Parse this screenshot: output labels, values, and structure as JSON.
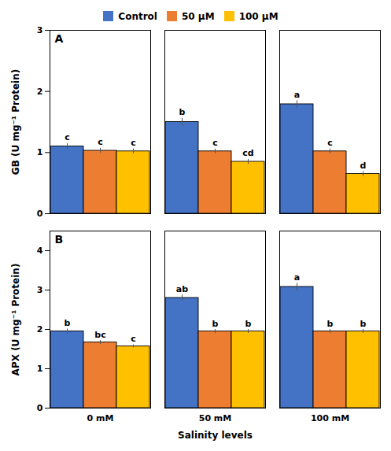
{
  "chart_data": [
    {
      "type": "bar",
      "title": "A",
      "categories": [
        "0 mM",
        "50 mM",
        "100 mM"
      ],
      "ylabel": "GB (U mg⁻¹ Protein)",
      "series": [
        {
          "name": "Control",
          "color": "#4472C4",
          "values": [
            1.1,
            1.5,
            1.79
          ],
          "errors": [
            0.05,
            0.06,
            0.06
          ],
          "annotations": [
            "c",
            "b",
            "a"
          ]
        },
        {
          "name": "50 μM",
          "color": "#ED7D31",
          "values": [
            1.03,
            1.02,
            1.02
          ],
          "errors": [
            0.04,
            0.04,
            0.04
          ],
          "annotations": [
            "c",
            "c",
            "c"
          ]
        },
        {
          "name": "100 μM",
          "color": "#FFC000",
          "values": [
            1.02,
            0.85,
            0.65
          ],
          "errors": [
            0.04,
            0.04,
            0.04
          ],
          "annotations": [
            "c",
            "cd",
            "d"
          ]
        }
      ],
      "ylim": [
        0,
        3
      ],
      "yticks": [
        0,
        1,
        2,
        3
      ],
      "grid": false,
      "legend": "top",
      "tick_labels": "y"
    },
    {
      "type": "bar",
      "title": "B",
      "categories": [
        "0 mM",
        "50 mM",
        "100 mM"
      ],
      "xlabel": "Salinity levels",
      "ylabel": "APX (U mg⁻¹ Protein)",
      "series": [
        {
          "name": "Control",
          "color": "#4472C4",
          "values": [
            1.95,
            2.8,
            3.08
          ],
          "errors": [
            0.06,
            0.08,
            0.09
          ],
          "annotations": [
            "b",
            "ab",
            "a"
          ]
        },
        {
          "name": "50 μM",
          "color": "#ED7D31",
          "values": [
            1.67,
            1.95,
            1.95
          ],
          "errors": [
            0.05,
            0.05,
            0.05
          ],
          "annotations": [
            "bc",
            "b",
            "b"
          ]
        },
        {
          "name": "100 μM",
          "color": "#FFC000",
          "values": [
            1.57,
            1.95,
            1.95
          ],
          "errors": [
            0.04,
            0.05,
            0.05
          ],
          "annotations": [
            "c",
            "b",
            "b"
          ]
        }
      ],
      "ylim": [
        0,
        4.5
      ],
      "yticks": [
        0,
        1,
        2,
        3,
        4
      ],
      "grid": false
    }
  ]
}
